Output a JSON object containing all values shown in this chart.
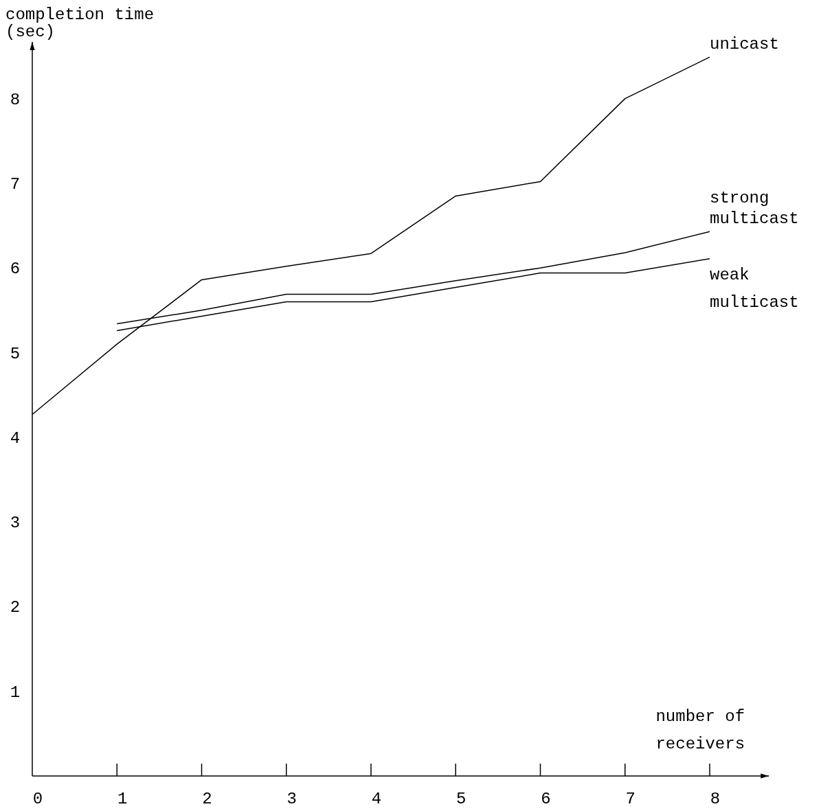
{
  "chart_data": {
    "type": "line",
    "xlabel": "number of receivers",
    "ylabel": "completion time (sec)",
    "x": [
      0,
      1,
      2,
      3,
      4,
      5,
      6,
      7,
      8
    ],
    "xlim": [
      0,
      8.7
    ],
    "ylim": [
      0,
      8.67
    ],
    "xticks": [
      0,
      1,
      2,
      3,
      4,
      5,
      6,
      7,
      8
    ],
    "yticks": [
      1,
      2,
      3,
      4,
      5,
      6,
      7,
      8
    ],
    "grid": false,
    "marker": "none",
    "line_style": "solid",
    "series": [
      {
        "name": "unicast",
        "color": "#000000",
        "values": [
          4.27,
          5.1,
          5.86,
          6.02,
          6.17,
          6.85,
          7.02,
          8.0,
          8.49
        ]
      },
      {
        "name": "strong multicast",
        "color": "#000000",
        "values": [
          null,
          5.34,
          5.5,
          5.69,
          5.69,
          5.85,
          6.0,
          6.18,
          6.43
        ]
      },
      {
        "name": "weak multicast",
        "color": "#000000",
        "values": [
          null,
          5.26,
          5.43,
          5.6,
          5.6,
          5.77,
          5.94,
          5.94,
          6.11
        ]
      }
    ]
  }
}
